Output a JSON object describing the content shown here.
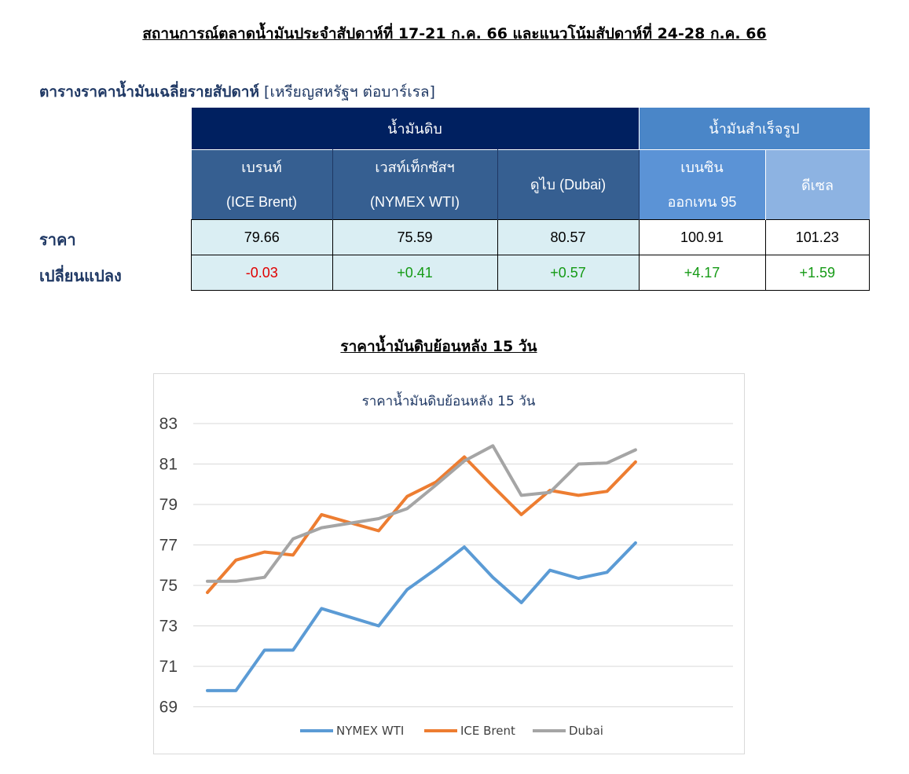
{
  "report_title": "สถานการณ์ตลาดน้ำมันประจำสัปดาห์ที่ 17-21 ก.ค. 66 และแนวโน้มสัปดาห์ที่ 24-28 ก.ค. 66",
  "table": {
    "caption": "ตารางราคาน้ำมันเฉลี่ยรายสัปดาห์",
    "unit": "[เหรียญสหรัฐฯ ต่อบาร์เรล]",
    "group_crude": "น้ำมันดิบ",
    "group_refined": "น้ำมันสำเร็จรูป",
    "columns": [
      {
        "line1": "เบรนท์",
        "line2": "(ICE Brent)"
      },
      {
        "line1": "เวสท์เท็กซัสฯ",
        "line2": "(NYMEX WTI)"
      },
      {
        "line1": "ดูไบ (Dubai)",
        "line2": ""
      },
      {
        "line1": "เบนซิน",
        "line2": "ออกเทน  95"
      },
      {
        "line1": "ดีเซล",
        "line2": ""
      }
    ],
    "row_price_label": "ราคา",
    "row_change_label": "เปลี่ยนแปลง",
    "prices": [
      "79.66",
      "75.59",
      "80.57",
      "100.91",
      "101.23"
    ],
    "changes": [
      "-0.03",
      "+0.41",
      "+0.57",
      "+4.17",
      "+1.59"
    ],
    "colors": {
      "crude_header": "#002060",
      "refined_header": "#4a86c8",
      "negative": "#e00000",
      "positive": "#159a15"
    }
  },
  "chart_section_title": "ราคาน้ำมันดิบย้อนหลัง 15 วัน",
  "chart_data": {
    "type": "line",
    "title": "ราคาน้ำมันดิบย้อนหลัง 15 วัน",
    "xlabel": "",
    "ylabel": "",
    "ylim": [
      68,
      83
    ],
    "yticks": [
      69,
      71,
      73,
      75,
      77,
      79,
      81,
      83
    ],
    "grid": true,
    "legend_position": "bottom",
    "series": [
      {
        "name": "NYMEX WTI",
        "color": "#5b9bd5",
        "values": [
          69.8,
          69.8,
          71.8,
          71.8,
          73.86,
          73.43,
          73.0,
          74.8,
          75.8,
          76.9,
          75.4,
          74.15,
          75.75,
          75.35,
          75.65,
          77.1
        ]
      },
      {
        "name": "ICE Brent",
        "color": "#ed7d31",
        "values": [
          74.65,
          76.25,
          76.65,
          76.5,
          78.5,
          77.7,
          79.4,
          80.1,
          81.35,
          79.9,
          78.5,
          79.7,
          79.45,
          79.65,
          81.1
        ]
      },
      {
        "name": "Dubai",
        "color": "#a5a5a5",
        "values": [
          75.2,
          75.2,
          75.4,
          77.3,
          77.85,
          78.3,
          78.8,
          79.95,
          81.15,
          81.9,
          79.45,
          79.6,
          81.0,
          81.05,
          81.7
        ]
      }
    ],
    "x_index": {
      "NYMEX WTI": [
        0,
        1,
        2,
        3,
        4,
        5,
        6,
        7,
        8,
        9,
        10,
        11,
        12,
        13,
        14,
        15
      ],
      "ICE Brent": [
        0,
        1,
        2,
        3,
        4,
        6,
        7,
        8,
        9,
        10,
        11,
        12,
        13,
        14,
        15
      ],
      "Dubai": [
        0,
        1,
        2,
        3,
        4,
        6,
        7,
        8,
        9,
        10,
        11,
        12,
        13,
        14,
        15
      ]
    }
  }
}
